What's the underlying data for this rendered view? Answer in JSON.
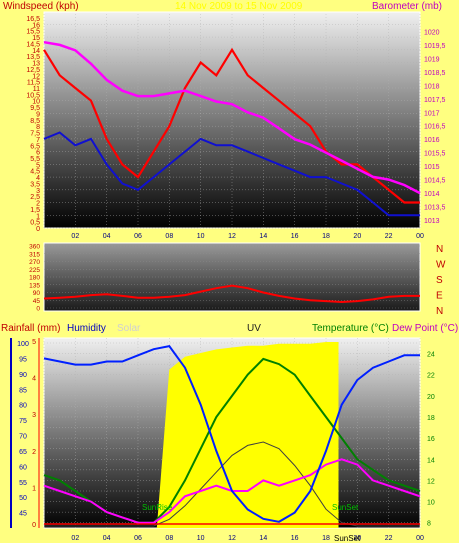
{
  "colors": {
    "page_bg": "#ffff80",
    "wind": "#e00000",
    "gust": "#ff0000",
    "avg_wind": "#1010d0",
    "baro": "#ff00ff",
    "humidity": "#0020ff",
    "temperature": "#008000",
    "dew": "#ff00ff",
    "solar_fill": "#ffff00",
    "solar_label": "#d0d0d0",
    "uv": "#404040",
    "rain": "#ff0000",
    "text_red": "#c00000",
    "text_green": "#008000",
    "text_blue": "#0000c0",
    "date_title": "#ffff00"
  },
  "chart_data": [
    {
      "type": "line",
      "name": "wind-baro",
      "title": "14 Nov 2009 to 15 Nov 2009",
      "ylabel_left": "Windspeed (kph)",
      "ylabel_right": "Barometer (mb)",
      "ylim_left": [
        0,
        16.5
      ],
      "ylim_right": [
        1013,
        1020.5
      ],
      "yticks_left": [
        "0",
        "0,5",
        "1",
        "1,5",
        "2",
        "2,5",
        "3",
        "3,5",
        "4",
        "4,5",
        "5",
        "5,5",
        "6",
        "6,5",
        "7",
        "7,5",
        "8",
        "8,5",
        "9",
        "9,5",
        "10",
        "10,5",
        "11",
        "11,5",
        "12",
        "12,5",
        "13",
        "13,5",
        "14",
        "14,5",
        "15",
        "15,5",
        "16",
        "16,5"
      ],
      "yticks_right": [
        "1013",
        "1013,5",
        "1014",
        "1014,5",
        "1015",
        "1015,5",
        "1016",
        "1016,5",
        "1017",
        "1017,5",
        "1018",
        "1018,5",
        "1019",
        "1019,5",
        "1020"
      ],
      "xticks": [
        "02",
        "04",
        "06",
        "08",
        "10",
        "12",
        "14",
        "16",
        "18",
        "20",
        "22",
        "00"
      ],
      "x": [
        0,
        1,
        2,
        3,
        4,
        5,
        6,
        7,
        8,
        9,
        10,
        11,
        12,
        13,
        14,
        15,
        16,
        17,
        18,
        19,
        20,
        21,
        22,
        23,
        24
      ],
      "series": [
        {
          "key": "gust",
          "values": [
            14,
            12,
            11,
            10,
            7,
            5,
            4,
            6,
            8,
            11,
            13,
            12,
            14,
            12,
            11,
            10,
            9,
            8,
            6,
            5,
            5,
            4,
            3,
            2,
            2
          ]
        },
        {
          "key": "avg",
          "values": [
            7,
            7.5,
            6.5,
            7,
            5,
            3.5,
            3,
            4,
            5,
            6,
            7,
            6.5,
            6.5,
            6,
            5.5,
            5,
            4.5,
            4,
            4,
            3.5,
            3,
            2,
            1,
            1,
            1
          ]
        },
        {
          "key": "baro",
          "values": [
            1019.6,
            1019.5,
            1019.3,
            1018.8,
            1018.2,
            1017.8,
            1017.6,
            1017.6,
            1017.7,
            1017.8,
            1017.6,
            1017.4,
            1017.3,
            1017.0,
            1016.8,
            1016.4,
            1016.0,
            1015.8,
            1015.5,
            1015.2,
            1014.9,
            1014.6,
            1014.5,
            1014.3,
            1014.0
          ]
        }
      ]
    },
    {
      "type": "line",
      "name": "wind-direction",
      "yticks": [
        "0",
        "45",
        "90",
        "135",
        "180",
        "225",
        "270",
        "315",
        "360"
      ],
      "direction_labels": [
        "N",
        "W",
        "S",
        "E",
        "N"
      ],
      "ylim": [
        0,
        360
      ],
      "x": [
        0,
        1,
        2,
        3,
        4,
        5,
        6,
        7,
        8,
        9,
        10,
        11,
        12,
        13,
        14,
        15,
        16,
        17,
        18,
        19,
        20,
        21,
        22,
        23,
        24
      ],
      "series": [
        {
          "key": "direction",
          "values": [
            55,
            60,
            65,
            75,
            80,
            70,
            60,
            60,
            65,
            75,
            95,
            115,
            130,
            115,
            90,
            70,
            55,
            45,
            40,
            35,
            40,
            50,
            65,
            70,
            70
          ]
        }
      ]
    },
    {
      "type": "line",
      "name": "rain-humidity-temp",
      "labels": {
        "rainfall": "Rainfall (mm)",
        "humidity": "Humidity",
        "solar": "Solar",
        "uv": "UV",
        "temperature": "Temperature (°C)",
        "dew": "Dew Point (°C)"
      },
      "annotations": {
        "sunrise": "SunRise",
        "sunset": "SunSet",
        "sunset_axis": "SunSet"
      },
      "ylim_humidity": [
        40,
        100
      ],
      "yticks_humidity": [
        "45",
        "50",
        "55",
        "60",
        "65",
        "70",
        "75",
        "80",
        "85",
        "90",
        "95",
        "100"
      ],
      "ylim_temp": [
        7.5,
        25
      ],
      "yticks_temp": [
        "8",
        "10",
        "12",
        "14",
        "16",
        "18",
        "20",
        "22",
        "24"
      ],
      "ylim_rain": [
        0,
        5
      ],
      "yticks_rain": [
        "0",
        "1",
        "2",
        "3",
        "4",
        "5"
      ],
      "xticks": [
        "02",
        "04",
        "06",
        "08",
        "10",
        "12",
        "14",
        "16",
        "18",
        "20",
        "22",
        "00"
      ],
      "sunrise_hour": 7.2,
      "sunset_hour": 18.8,
      "x": [
        0,
        1,
        2,
        3,
        4,
        5,
        6,
        7,
        8,
        9,
        10,
        11,
        12,
        13,
        14,
        15,
        16,
        17,
        18,
        19,
        20,
        21,
        22,
        23,
        24
      ],
      "series": [
        {
          "key": "humidity",
          "values": [
            95,
            94,
            93,
            93,
            94,
            94,
            96,
            98,
            99,
            92,
            80,
            65,
            52,
            46,
            43,
            42,
            45,
            52,
            65,
            80,
            88,
            92,
            94,
            96,
            96
          ]
        },
        {
          "key": "temperature",
          "values": [
            12.5,
            12,
            11,
            10,
            9,
            8.5,
            8,
            8,
            9.5,
            12,
            15,
            18,
            20,
            22,
            23.5,
            23,
            22,
            20,
            18,
            16,
            14,
            13,
            12,
            11.5,
            11
          ]
        },
        {
          "key": "dew",
          "values": [
            11.5,
            11,
            10.5,
            10,
            9,
            8.5,
            8,
            8,
            9,
            10.5,
            11,
            11.5,
            11,
            11,
            12,
            11.5,
            12,
            12.5,
            13.5,
            14,
            13.5,
            12,
            11.5,
            11,
            10.5
          ]
        },
        {
          "key": "solar",
          "values": [
            0,
            0,
            0,
            0,
            0,
            0,
            0,
            0,
            85,
            92,
            94,
            96,
            97,
            98,
            98,
            99,
            99,
            99,
            100,
            0,
            0,
            0,
            0,
            0,
            0
          ]
        },
        {
          "key": "uv",
          "values": [
            0,
            0,
            0,
            0,
            0,
            0,
            0,
            0,
            0.2,
            0.6,
            1.1,
            1.6,
            2.1,
            2.4,
            2.5,
            2.3,
            1.8,
            1.2,
            0.5,
            0.1,
            0,
            0,
            0,
            0,
            0
          ]
        },
        {
          "key": "rain",
          "values": [
            0,
            0,
            0,
            0,
            0,
            0,
            0,
            0,
            0,
            0,
            0,
            0,
            0,
            0,
            0,
            0,
            0,
            0,
            0,
            0,
            0,
            0,
            0,
            0,
            0
          ]
        }
      ]
    }
  ]
}
